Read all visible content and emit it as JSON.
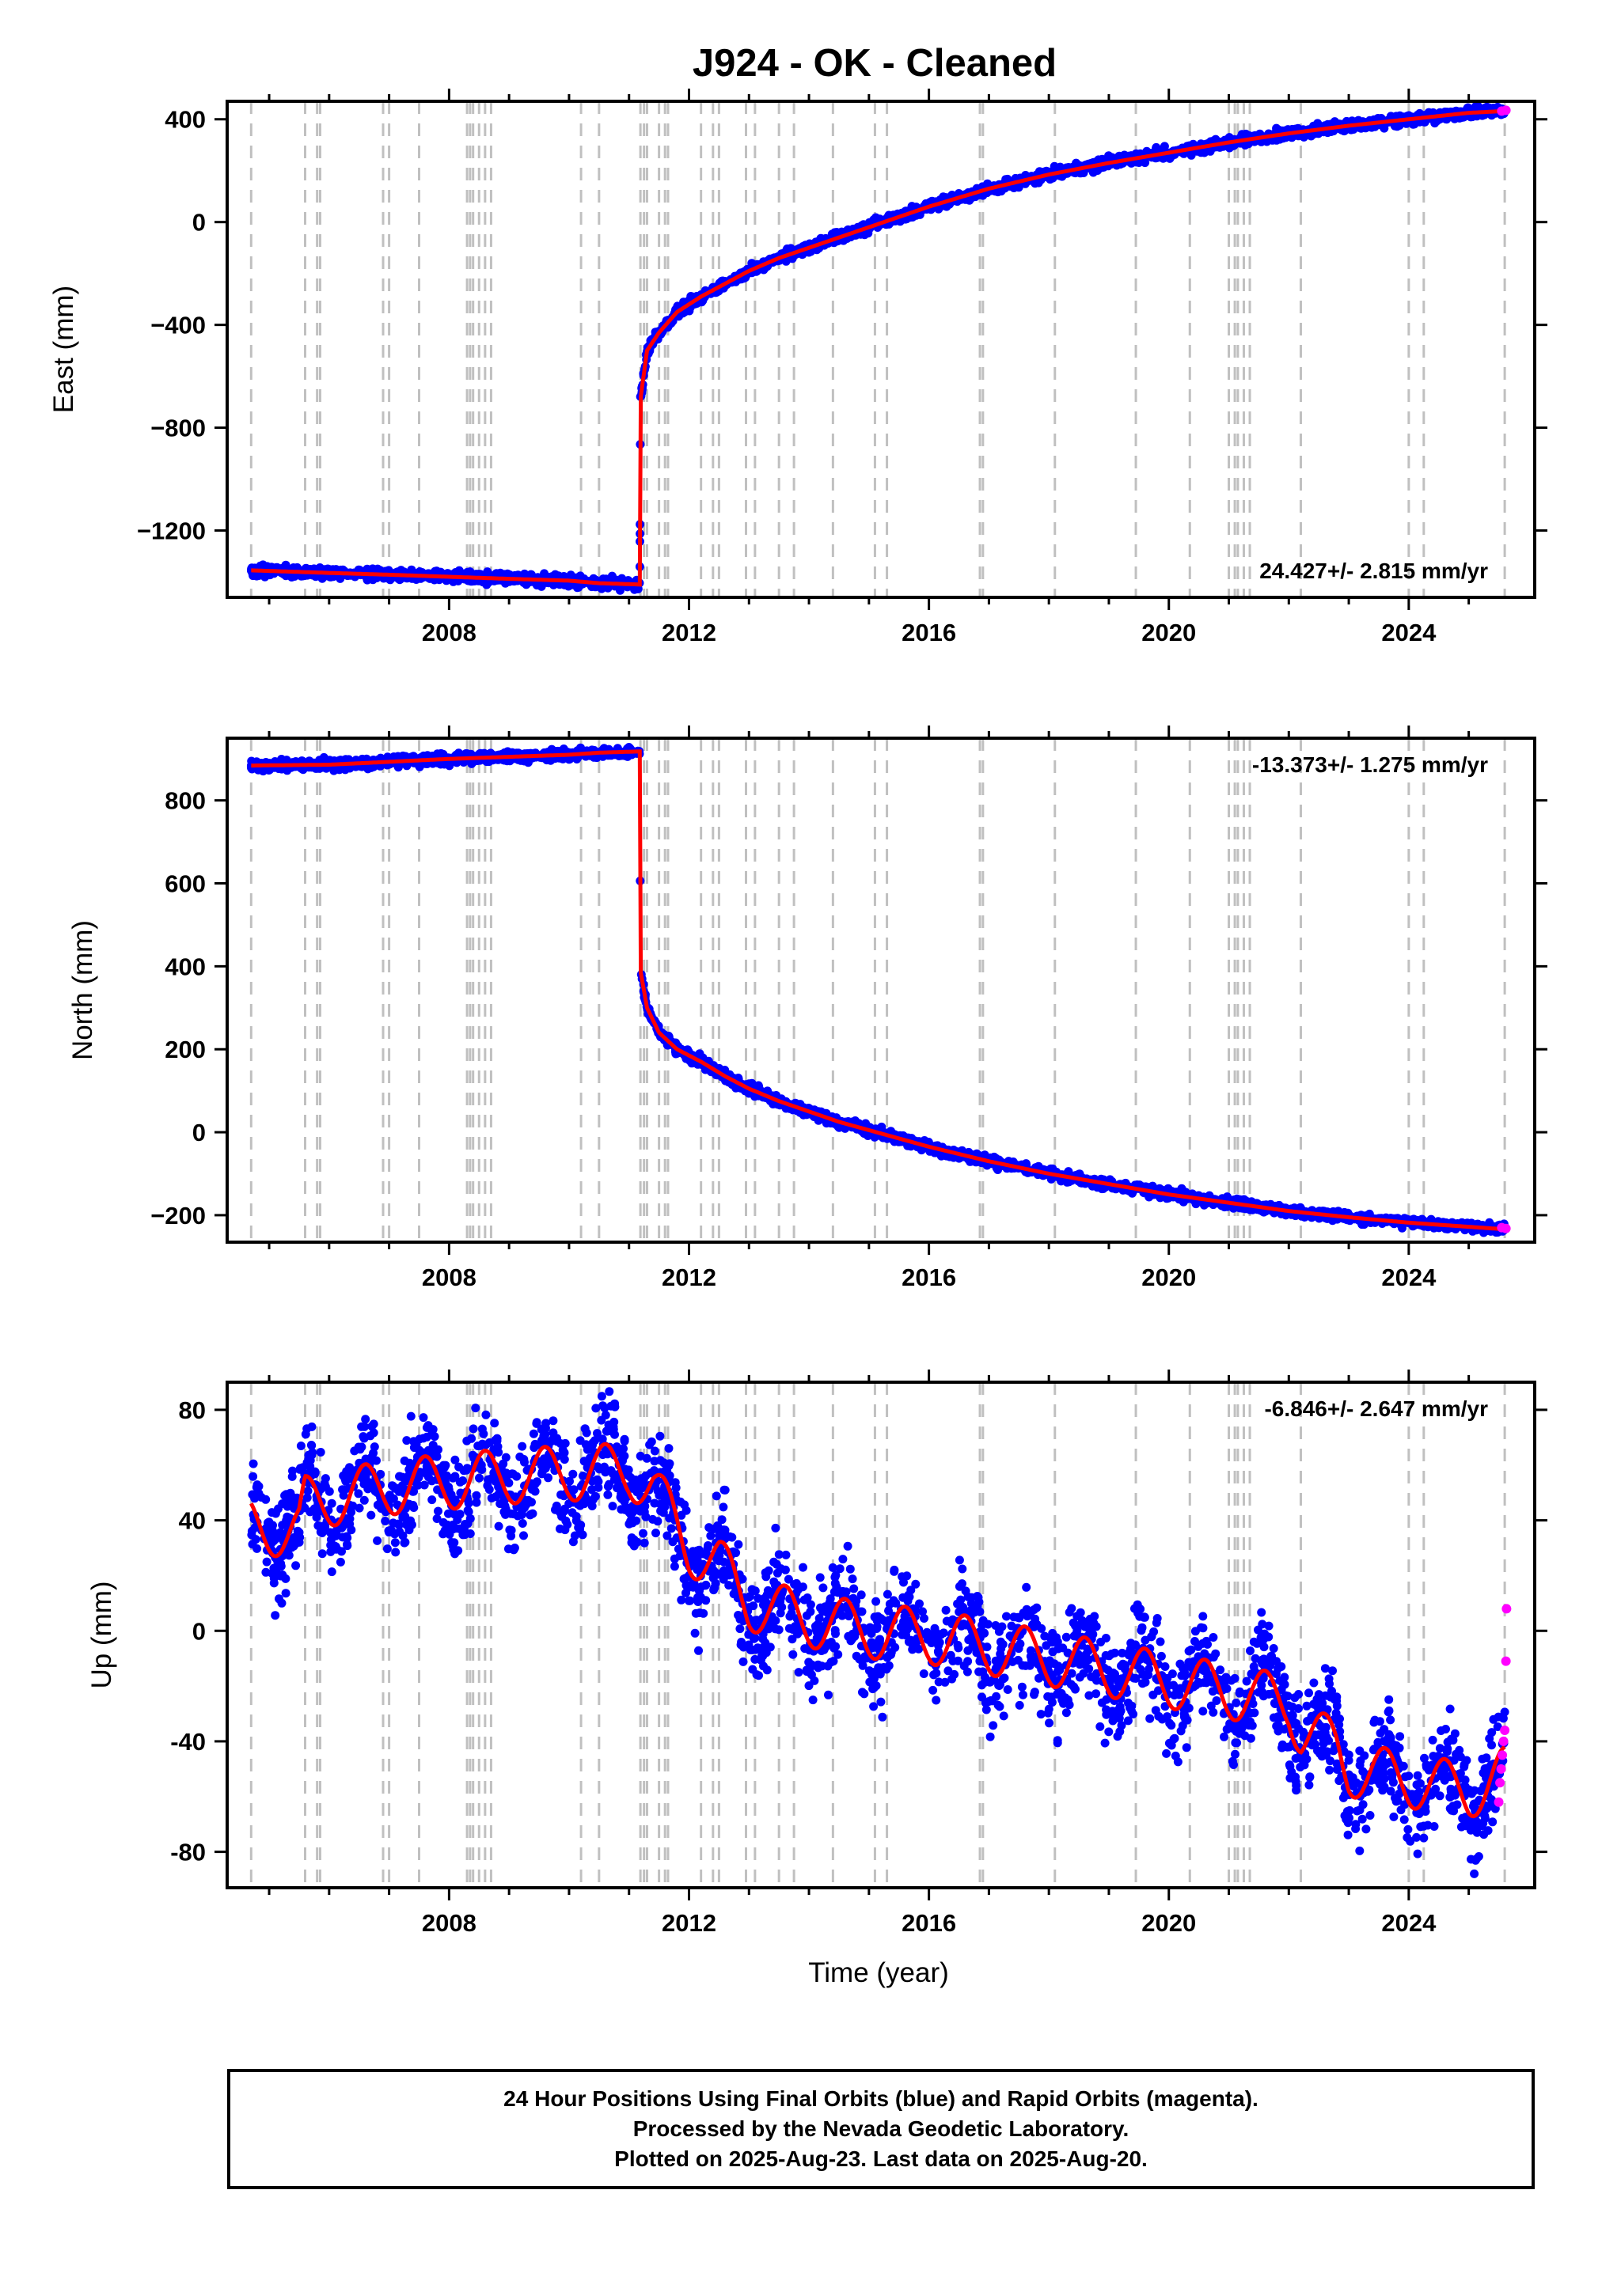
{
  "title": "J924  - OK - Cleaned",
  "footer": {
    "line1": "24 Hour Positions Using Final Orbits (blue) and Rapid Orbits (magenta).",
    "line2": "Processed by the Nevada Geodetic Laboratory.",
    "line3": "Plotted on 2025-Aug-23. Last data on 2025-Aug-20."
  },
  "colors": {
    "final": "#0000ff",
    "rapid": "#ff00ff",
    "model": "#ff0000",
    "events": "#c0c0c0"
  },
  "chart_data": [
    {
      "type": "scatter",
      "ylabel": "East (mm)",
      "rate": "24.427+/- 2.815 mm/yr",
      "xlim": [
        2004.3,
        2026.1
      ],
      "ylim": [
        -1460,
        470
      ],
      "xticks": [
        2008,
        2012,
        2016,
        2020,
        2024
      ],
      "yticks": [
        400,
        0,
        -400,
        -800,
        -1200
      ],
      "ytick_labels": [
        "400",
        "0",
        "−400",
        "−800",
        "−1200"
      ],
      "model": [
        [
          2004.7,
          -1355
        ],
        [
          2006.0,
          -1365
        ],
        [
          2007.0,
          -1372
        ],
        [
          2008.0,
          -1380
        ],
        [
          2009.0,
          -1388
        ],
        [
          2010.0,
          -1395
        ],
        [
          2010.5,
          -1405
        ],
        [
          2011.18,
          -1410
        ],
        [
          2011.19,
          -690
        ],
        [
          2011.3,
          -500
        ],
        [
          2011.5,
          -430
        ],
        [
          2011.8,
          -350
        ],
        [
          2012.2,
          -290
        ],
        [
          2012.6,
          -240
        ],
        [
          2013.0,
          -190
        ],
        [
          2013.5,
          -140
        ],
        [
          2014.0,
          -100
        ],
        [
          2014.5,
          -60
        ],
        [
          2015.0,
          -20
        ],
        [
          2016.0,
          60
        ],
        [
          2017.0,
          130
        ],
        [
          2018.0,
          185
        ],
        [
          2019.0,
          230
        ],
        [
          2020.0,
          270
        ],
        [
          2021.0,
          310
        ],
        [
          2022.0,
          345
        ],
        [
          2023.0,
          375
        ],
        [
          2024.0,
          400
        ],
        [
          2025.0,
          425
        ],
        [
          2025.6,
          432
        ]
      ],
      "scatter_noise": 10,
      "rapid": [
        [
          2025.55,
          432
        ],
        [
          2025.62,
          435
        ]
      ]
    },
    {
      "type": "scatter",
      "ylabel": "North (mm)",
      "rate": "-13.373+/- 1.275 mm/yr",
      "xlim": [
        2004.3,
        2026.1
      ],
      "ylim": [
        -265,
        950
      ],
      "xticks": [
        2008,
        2012,
        2016,
        2020,
        2024
      ],
      "yticks": [
        800,
        600,
        400,
        200,
        0,
        -200
      ],
      "ytick_labels": [
        "800",
        "600",
        "400",
        "200",
        "0",
        "−200"
      ],
      "model": [
        [
          2004.7,
          884
        ],
        [
          2006.0,
          886
        ],
        [
          2007.0,
          893
        ],
        [
          2008.0,
          900
        ],
        [
          2009.0,
          905
        ],
        [
          2010.0,
          910
        ],
        [
          2010.5,
          915
        ],
        [
          2011.18,
          918
        ],
        [
          2011.19,
          390
        ],
        [
          2011.3,
          300
        ],
        [
          2011.5,
          240
        ],
        [
          2011.8,
          200
        ],
        [
          2012.2,
          170
        ],
        [
          2012.6,
          135
        ],
        [
          2013.0,
          105
        ],
        [
          2013.5,
          75
        ],
        [
          2014.0,
          50
        ],
        [
          2014.5,
          25
        ],
        [
          2015.0,
          5
        ],
        [
          2016.0,
          -35
        ],
        [
          2017.0,
          -70
        ],
        [
          2018.0,
          -100
        ],
        [
          2019.0,
          -125
        ],
        [
          2020.0,
          -150
        ],
        [
          2021.0,
          -170
        ],
        [
          2022.0,
          -190
        ],
        [
          2023.0,
          -205
        ],
        [
          2024.0,
          -218
        ],
        [
          2025.0,
          -228
        ],
        [
          2025.6,
          -234
        ]
      ],
      "scatter_noise": 6,
      "rapid": [
        [
          2025.55,
          -230
        ],
        [
          2025.62,
          -232
        ]
      ]
    },
    {
      "type": "scatter",
      "ylabel": "Up (mm)",
      "rate": "-6.846+/- 2.647 mm/yr",
      "xlim": [
        2004.3,
        2026.1
      ],
      "ylim": [
        -93,
        90
      ],
      "xticks": [
        2008,
        2012,
        2016,
        2020,
        2024
      ],
      "yticks": [
        80,
        40,
        0,
        -40,
        -80
      ],
      "ytick_labels": [
        "80",
        "40",
        "0",
        "-40",
        "-80"
      ],
      "trend": [
        [
          2004.7,
          38
        ],
        [
          2005.5,
          36
        ],
        [
          2005.6,
          46
        ],
        [
          2007.0,
          52
        ],
        [
          2009.0,
          56
        ],
        [
          2011.0,
          58
        ],
        [
          2011.4,
          52
        ],
        [
          2012.0,
          30
        ],
        [
          2012.5,
          24
        ],
        [
          2013.0,
          10
        ],
        [
          2014.0,
          4
        ],
        [
          2015.0,
          0
        ],
        [
          2016.0,
          -2
        ],
        [
          2017.0,
          -6
        ],
        [
          2018.0,
          -10
        ],
        [
          2019.0,
          -14
        ],
        [
          2020.0,
          -18
        ],
        [
          2021.0,
          -22
        ],
        [
          2022.0,
          -26
        ],
        [
          2022.2,
          -36
        ],
        [
          2022.8,
          -42
        ],
        [
          2023.0,
          -50
        ],
        [
          2024.0,
          -54
        ],
        [
          2025.0,
          -58
        ],
        [
          2025.6,
          -52
        ]
      ],
      "seasonal_amplitude": 10,
      "scatter_noise": 9,
      "rapid": [
        [
          2025.5,
          -62
        ],
        [
          2025.52,
          -55
        ],
        [
          2025.54,
          -50
        ],
        [
          2025.56,
          -45
        ],
        [
          2025.58,
          -40
        ],
        [
          2025.6,
          -36
        ],
        [
          2025.62,
          -11
        ],
        [
          2025.63,
          8
        ]
      ]
    }
  ],
  "events": [
    2004.7,
    2005.6,
    2005.8,
    2005.85,
    2006.9,
    2007.0,
    2007.5,
    2008.3,
    2008.35,
    2008.4,
    2008.5,
    2008.6,
    2008.7,
    2010.2,
    2010.5,
    2011.19,
    2011.25,
    2011.3,
    2011.5,
    2011.6,
    2011.65,
    2012.2,
    2012.4,
    2012.5,
    2012.95,
    2013.1,
    2013.5,
    2013.75,
    2014.4,
    2015.1,
    2015.3,
    2016.85,
    2016.9,
    2018.1,
    2019.45,
    2020.35,
    2021.0,
    2021.1,
    2021.15,
    2021.25,
    2021.35,
    2022.2,
    2024.0,
    2024.25,
    2025.6
  ]
}
